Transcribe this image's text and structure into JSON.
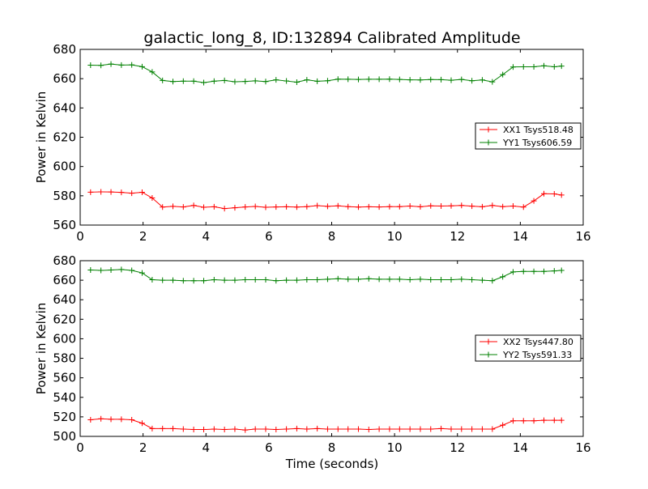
{
  "figure": {
    "title": "galactic_long_8, ID:132894 Calibrated Amplitude",
    "xlabel": "Time (seconds)"
  },
  "colors": {
    "XX": "#ff0000",
    "YY": "#008000"
  },
  "chart_data": [
    {
      "type": "line",
      "ylabel": "Power in Kelvin",
      "xlim": [
        0,
        16
      ],
      "ylim": [
        560,
        680
      ],
      "xticks": [
        "0",
        "2",
        "4",
        "6",
        "8",
        "10",
        "12",
        "14",
        "16"
      ],
      "yticks": [
        "560",
        "580",
        "600",
        "620",
        "640",
        "660",
        "680"
      ],
      "grid": false,
      "legend_position": "center-right",
      "x": [
        0.33,
        0.66,
        0.98,
        1.31,
        1.64,
        1.97,
        2.29,
        2.62,
        2.95,
        3.28,
        3.61,
        3.93,
        4.26,
        4.59,
        4.92,
        5.25,
        5.57,
        5.9,
        6.23,
        6.56,
        6.89,
        7.21,
        7.54,
        7.87,
        8.2,
        8.52,
        8.85,
        9.18,
        9.51,
        9.84,
        10.16,
        10.49,
        10.82,
        11.15,
        11.48,
        11.8,
        12.13,
        12.46,
        12.79,
        13.11,
        13.44,
        13.77,
        14.1,
        14.43,
        14.75,
        15.08,
        15.31
      ],
      "series": [
        {
          "name": "XX1 Tsys518.48",
          "color_key": "XX",
          "values": [
            582.5,
            582.7,
            582.6,
            582.3,
            581.8,
            582.4,
            578.5,
            572.3,
            572.8,
            572.4,
            573.4,
            572.2,
            572.5,
            571.3,
            571.8,
            572.4,
            572.7,
            572.2,
            572.4,
            572.5,
            572.3,
            572.6,
            573.3,
            572.8,
            573.1,
            572.6,
            572.3,
            572.5,
            572.4,
            572.6,
            572.6,
            573.0,
            572.5,
            573.1,
            573.0,
            573.1,
            573.4,
            572.9,
            572.5,
            573.4,
            572.6,
            573.0,
            572.3,
            576.5,
            581.4,
            581.3,
            580.5
          ]
        },
        {
          "name": "YY1 Tsys606.59",
          "color_key": "YY",
          "values": [
            669.2,
            669.1,
            670.0,
            669.3,
            669.4,
            668.2,
            664.6,
            658.8,
            658.0,
            658.3,
            658.3,
            657.3,
            658.3,
            658.8,
            657.9,
            658.1,
            658.5,
            658.0,
            659.2,
            658.4,
            657.6,
            659.2,
            658.2,
            658.6,
            659.7,
            659.6,
            659.5,
            659.6,
            659.6,
            659.7,
            659.5,
            659.2,
            659.1,
            659.4,
            659.3,
            658.9,
            659.5,
            658.6,
            659.1,
            657.8,
            662.8,
            668.0,
            668.1,
            668.1,
            668.8,
            668.1,
            668.6
          ]
        }
      ]
    },
    {
      "type": "line",
      "ylabel": "Power in Kelvin",
      "xlim": [
        0,
        16
      ],
      "ylim": [
        500,
        680
      ],
      "xticks": [
        "0",
        "2",
        "4",
        "6",
        "8",
        "10",
        "12",
        "14",
        "16"
      ],
      "yticks": [
        "500",
        "520",
        "540",
        "560",
        "580",
        "600",
        "620",
        "640",
        "660",
        "680"
      ],
      "grid": false,
      "legend_position": "center-right",
      "x": [
        0.33,
        0.66,
        0.98,
        1.31,
        1.64,
        1.97,
        2.29,
        2.62,
        2.95,
        3.28,
        3.61,
        3.93,
        4.26,
        4.59,
        4.92,
        5.25,
        5.57,
        5.9,
        6.23,
        6.56,
        6.89,
        7.21,
        7.54,
        7.87,
        8.2,
        8.52,
        8.85,
        9.18,
        9.51,
        9.84,
        10.16,
        10.49,
        10.82,
        11.15,
        11.48,
        11.8,
        12.13,
        12.46,
        12.79,
        13.11,
        13.44,
        13.77,
        14.1,
        14.43,
        14.75,
        15.08,
        15.31
      ],
      "series": [
        {
          "name": "XX2 Tsys447.80",
          "color_key": "XX",
          "values": [
            517.0,
            518.0,
            517.5,
            517.5,
            517.0,
            513.5,
            508.0,
            508.0,
            508.0,
            507.5,
            507.0,
            507.0,
            507.5,
            507.0,
            507.5,
            506.5,
            507.5,
            507.5,
            507.0,
            507.5,
            508.0,
            507.5,
            508.0,
            507.5,
            507.5,
            507.5,
            507.5,
            507.0,
            507.5,
            507.5,
            507.5,
            507.5,
            507.5,
            507.5,
            508.0,
            507.5,
            507.5,
            507.5,
            507.5,
            507.5,
            511.5,
            516.0,
            516.0,
            516.0,
            516.5,
            516.5,
            516.5
          ]
        },
        {
          "name": "YY2 Tsys591.33",
          "color_key": "YY",
          "values": [
            670.5,
            670.0,
            670.5,
            671.0,
            670.0,
            667.5,
            660.5,
            660.0,
            660.0,
            659.5,
            659.5,
            659.5,
            660.5,
            660.0,
            660.0,
            660.5,
            660.5,
            660.5,
            659.5,
            660.0,
            660.0,
            660.5,
            660.5,
            661.0,
            661.5,
            661.0,
            661.0,
            661.5,
            661.0,
            661.0,
            661.0,
            660.5,
            661.0,
            660.5,
            660.5,
            660.5,
            661.0,
            660.5,
            660.0,
            659.5,
            663.5,
            668.5,
            669.0,
            669.0,
            669.0,
            669.5,
            670.0
          ]
        }
      ]
    }
  ]
}
